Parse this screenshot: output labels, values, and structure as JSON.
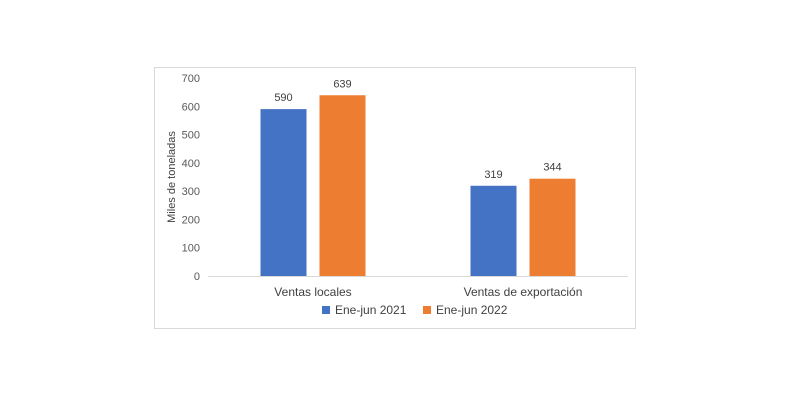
{
  "chart_data": {
    "type": "bar",
    "title": "",
    "xlabel": "",
    "ylabel": "Miles de toneladas",
    "categories": [
      "Ventas locales",
      "Ventas de exportación"
    ],
    "series": [
      {
        "name": "Ene-jun 2021",
        "values": [
          590,
          319
        ],
        "color": "#4472c4"
      },
      {
        "name": "Ene-jun 2022",
        "values": [
          639,
          344
        ],
        "color": "#ed7d31"
      }
    ],
    "ylim": [
      0,
      700
    ],
    "yticks": [
      0,
      100,
      200,
      300,
      400,
      500,
      600,
      700
    ],
    "grid": false,
    "legend": "bottom",
    "data_labels": true
  }
}
